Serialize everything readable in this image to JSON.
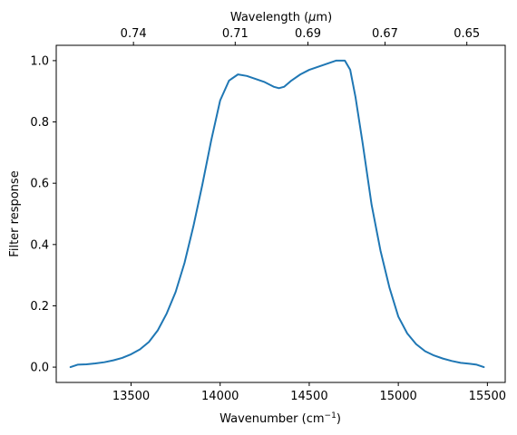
{
  "chart_data": {
    "type": "line",
    "title": "",
    "xlabel": "Wavenumber (cm",
    "xlabel_sup": "−1",
    "xlabel_close": ")",
    "ylabel": "Filter response",
    "top_xlabel": "Wavelength (",
    "top_xlabel_mu": "μ",
    "top_xlabel_unit": "m)",
    "xlim": [
      13080,
      15600
    ],
    "ylim": [
      -0.05,
      1.05
    ],
    "grid": false,
    "legend": "none",
    "colors": {
      "series": "#1f77b4",
      "axes": "#000000",
      "background": "#ffffff"
    },
    "x_ticks": [
      13500,
      14000,
      14500,
      15000,
      15500
    ],
    "x_tick_labels": [
      "13500",
      "14000",
      "14500",
      "15000",
      "15500"
    ],
    "y_ticks": [
      0.0,
      0.2,
      0.4,
      0.6,
      0.8,
      1.0
    ],
    "y_tick_labels": [
      "0.0",
      "0.2",
      "0.4",
      "0.6",
      "0.8",
      "1.0"
    ],
    "top_ticks": [
      0.74,
      0.71,
      0.69,
      0.67,
      0.65
    ],
    "top_tick_labels": [
      "0.74",
      "0.71",
      "0.69",
      "0.67",
      "0.65"
    ],
    "series": [
      {
        "x": [
          13160,
          13200,
          13250,
          13300,
          13350,
          13400,
          13450,
          13500,
          13550,
          13600,
          13650,
          13700,
          13750,
          13800,
          13850,
          13900,
          13950,
          14000,
          14050,
          14100,
          14150,
          14200,
          14250,
          14300,
          14330,
          14360,
          14400,
          14450,
          14500,
          14550,
          14600,
          14650,
          14700,
          14730,
          14760,
          14800,
          14850,
          14900,
          14950,
          15000,
          15050,
          15100,
          15150,
          15200,
          15250,
          15300,
          15350,
          15400,
          15440,
          15480
        ],
        "y": [
          0.0,
          0.008,
          0.009,
          0.012,
          0.016,
          0.022,
          0.03,
          0.042,
          0.058,
          0.082,
          0.12,
          0.175,
          0.245,
          0.34,
          0.46,
          0.595,
          0.74,
          0.87,
          0.935,
          0.955,
          0.95,
          0.94,
          0.93,
          0.915,
          0.91,
          0.915,
          0.935,
          0.955,
          0.97,
          0.98,
          0.99,
          1.0,
          1.0,
          0.97,
          0.88,
          0.73,
          0.53,
          0.38,
          0.26,
          0.165,
          0.11,
          0.075,
          0.052,
          0.038,
          0.028,
          0.02,
          0.014,
          0.011,
          0.008,
          0.0
        ]
      }
    ]
  }
}
